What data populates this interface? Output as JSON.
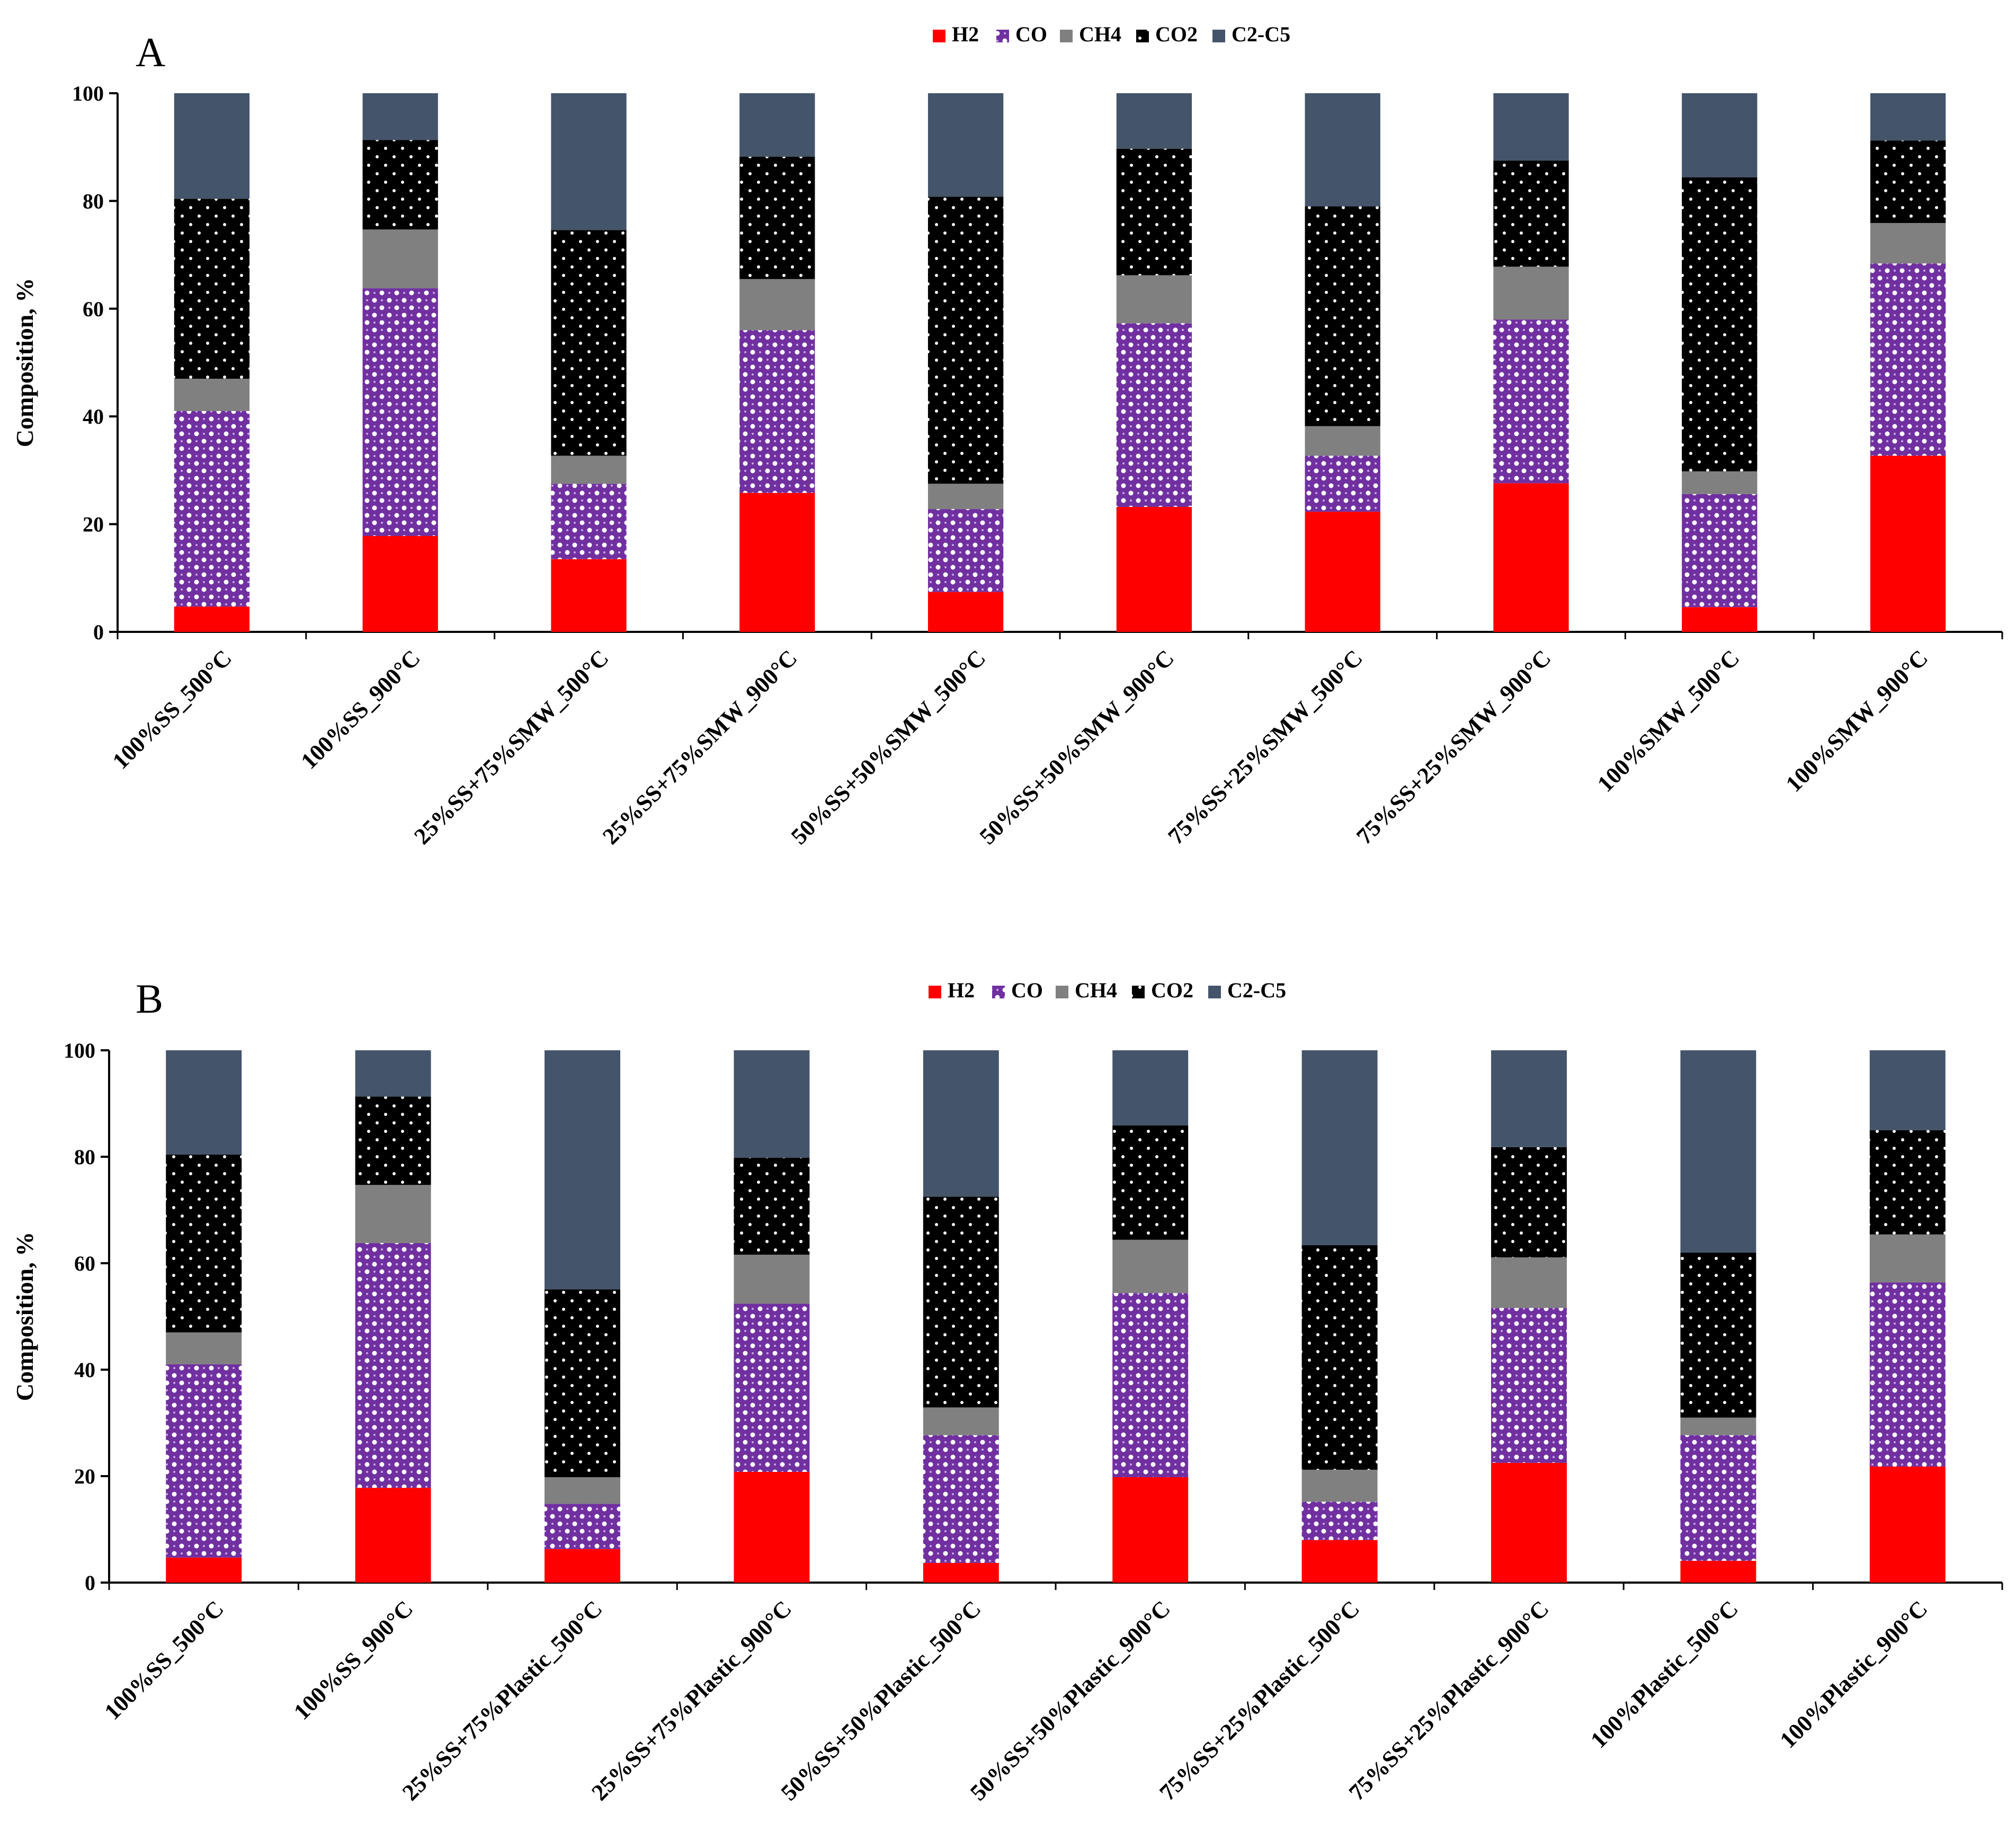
{
  "colors": {
    "H2": "#ff0000",
    "CO": "#7030a0",
    "CH4": "#808080",
    "CO2": "#000000",
    "C2-C5": "#44546a"
  },
  "chart_data": [
    {
      "panel": "A",
      "type": "bar",
      "stacked": true,
      "legend": [
        "H2",
        "CO",
        "CH4",
        "CO2",
        "C2-C5"
      ],
      "legend_position": "top-center",
      "ylabel": "Composition, %",
      "ylim": [
        0,
        100
      ],
      "yticks": [
        "0",
        "20",
        "40",
        "60",
        "80",
        "100"
      ],
      "categories": [
        "100%SS_500°C",
        "100%SS_900°C",
        "25%SS+75%SMW_500°C",
        "25%SS+75%SMW_900°C",
        "50%SS+50%SMW_500°C",
        "50%SS+50%SMW_900°C",
        "75%SS+25%SMW_500°C",
        "75%SS+25%SMW_900°C",
        "100%SMW_500°C",
        "100%SMW_900°C"
      ],
      "series": [
        {
          "name": "H2",
          "values": [
            4.7,
            17.8,
            13.5,
            25.8,
            7.4,
            23.2,
            22.3,
            27.6,
            4.6,
            32.7
          ]
        },
        {
          "name": "CO",
          "values": [
            36.3,
            46.0,
            14.0,
            30.2,
            15.4,
            34.1,
            10.4,
            30.4,
            21.0,
            35.7
          ]
        },
        {
          "name": "CH4",
          "values": [
            6.0,
            10.9,
            5.2,
            9.5,
            4.7,
            8.9,
            5.5,
            9.8,
            4.2,
            7.5
          ]
        },
        {
          "name": "CO2",
          "values": [
            33.4,
            16.6,
            41.9,
            22.7,
            53.3,
            23.5,
            40.8,
            19.7,
            54.6,
            15.3
          ]
        },
        {
          "name": "C2-C5",
          "values": [
            19.6,
            8.7,
            25.4,
            11.8,
            19.2,
            10.3,
            21.0,
            12.5,
            15.6,
            8.8
          ]
        }
      ]
    },
    {
      "panel": "B",
      "type": "bar",
      "stacked": true,
      "legend": [
        "H2",
        "CO",
        "CH4",
        "CO2",
        "C2-C5"
      ],
      "legend_position": "top-center",
      "ylabel": "Composition, %",
      "ylim": [
        0,
        100
      ],
      "yticks": [
        "0",
        "20",
        "40",
        "60",
        "80",
        "100"
      ],
      "categories": [
        "100%SS_500°C",
        "100%SS_900°C",
        "25%SS+75%Plastic_500°C",
        "25%SS+75%Plastic_900°C",
        "50%SS+50%Plastic_500°C",
        "50%SS+50%Plastic_900°C",
        "75%SS+25%Plastic_500°C",
        "75%SS+25%Plastic_900°C",
        "100%Plastic_500°C",
        "100%Plastic_900°C"
      ],
      "series": [
        {
          "name": "H2",
          "values": [
            4.7,
            17.8,
            6.3,
            20.8,
            3.7,
            19.8,
            8.0,
            22.5,
            4.1,
            21.8
          ]
        },
        {
          "name": "CO",
          "values": [
            36.3,
            46.0,
            8.5,
            31.6,
            24.0,
            34.6,
            7.2,
            29.1,
            23.6,
            34.6
          ]
        },
        {
          "name": "CH4",
          "values": [
            6.0,
            10.9,
            5.0,
            9.2,
            5.2,
            10.0,
            6.0,
            9.5,
            3.3,
            9.0
          ]
        },
        {
          "name": "CO2",
          "values": [
            33.4,
            16.6,
            35.3,
            18.2,
            39.6,
            21.5,
            42.2,
            20.7,
            31.0,
            19.6
          ]
        },
        {
          "name": "C2-C5",
          "values": [
            19.6,
            8.7,
            44.9,
            20.2,
            27.5,
            14.1,
            36.6,
            18.2,
            38.0,
            15.0
          ]
        }
      ]
    }
  ]
}
